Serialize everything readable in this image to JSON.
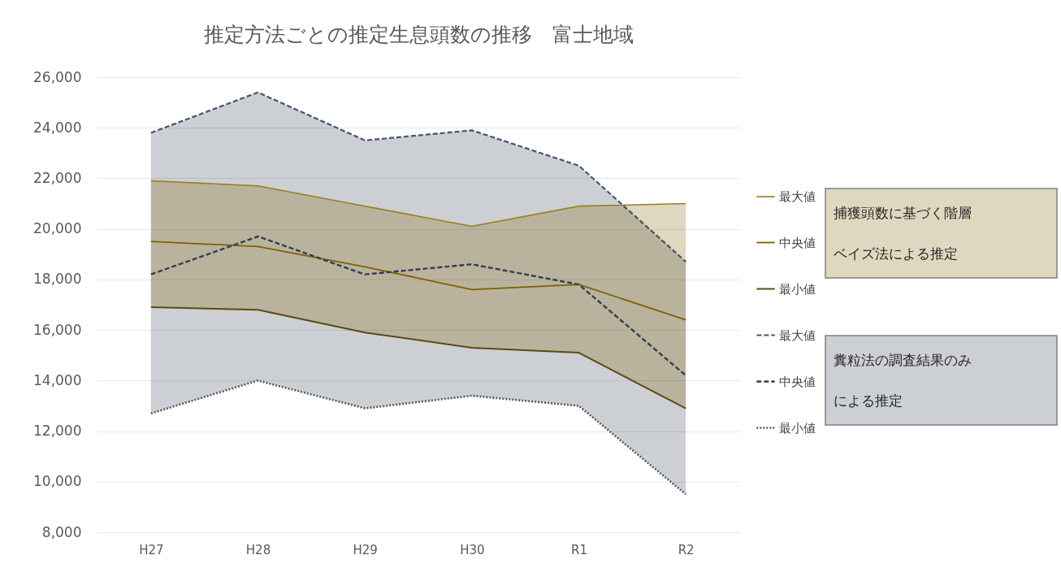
{
  "chart_data": {
    "type": "line",
    "title": "推定方法ごとの推定生息頭数の推移　富士地域",
    "categories": [
      "H27",
      "H28",
      "H29",
      "H30",
      "R1",
      "R2"
    ],
    "series": [
      {
        "name": "最大値",
        "color": "#9c7c1c",
        "line_style": "solid",
        "values": [
          21900,
          21700,
          20900,
          20100,
          20900,
          21000
        ]
      },
      {
        "name": "中央値",
        "color": "#7f6000",
        "line_style": "solid",
        "lower": [
          16900,
          16800,
          15900,
          15300,
          15100,
          12900
        ],
        "upper": [
          21900,
          21700,
          20900,
          20100,
          20900,
          21000
        ],
        "values": [
          19500,
          19300,
          18500,
          17600,
          17800,
          16400
        ]
      },
      {
        "name": "最小値",
        "color": "#5e4a10",
        "line_style": "solid",
        "values": [
          16900,
          16800,
          15900,
          15300,
          15100,
          12900
        ]
      },
      {
        "name": "最大値",
        "color": "#44546a",
        "line_style": "dashed",
        "values": [
          23800,
          25400,
          23500,
          23900,
          22500,
          18700
        ]
      },
      {
        "name": "中央値",
        "color": "#333f50",
        "line_style": "dashed",
        "lower": [
          12700,
          14000,
          12900,
          13400,
          13000,
          9500
        ],
        "upper": [
          23800,
          25400,
          23500,
          23900,
          22500,
          18700
        ],
        "values": [
          18200,
          19700,
          18200,
          18600,
          17800,
          14200
        ]
      },
      {
        "name": "最小値",
        "color": "#595959",
        "line_style": "dotted",
        "values": [
          12700,
          14000,
          12900,
          13400,
          13000,
          9500
        ]
      }
    ],
    "annotations": [
      "捕獲頭数に基づく階層ベイズ法による推定",
      "糞粒法の調査結果のみによる推定"
    ],
    "ylim": [
      8000,
      26000
    ],
    "yticks": [
      {
        "value": 8000,
        "label": "8,000"
      },
      {
        "value": 10000,
        "label": "10,000"
      },
      {
        "value": 12000,
        "label": "12,000"
      },
      {
        "value": 14000,
        "label": "14,000"
      },
      {
        "value": 16000,
        "label": "16,000"
      },
      {
        "value": 18000,
        "label": "18,000"
      },
      {
        "value": 20000,
        "label": "20,000"
      },
      {
        "value": 22000,
        "label": "22,000"
      },
      {
        "value": 24000,
        "label": "24,000"
      },
      {
        "value": 26000,
        "label": "26,000"
      }
    ],
    "grid": "y",
    "legend": "right"
  }
}
